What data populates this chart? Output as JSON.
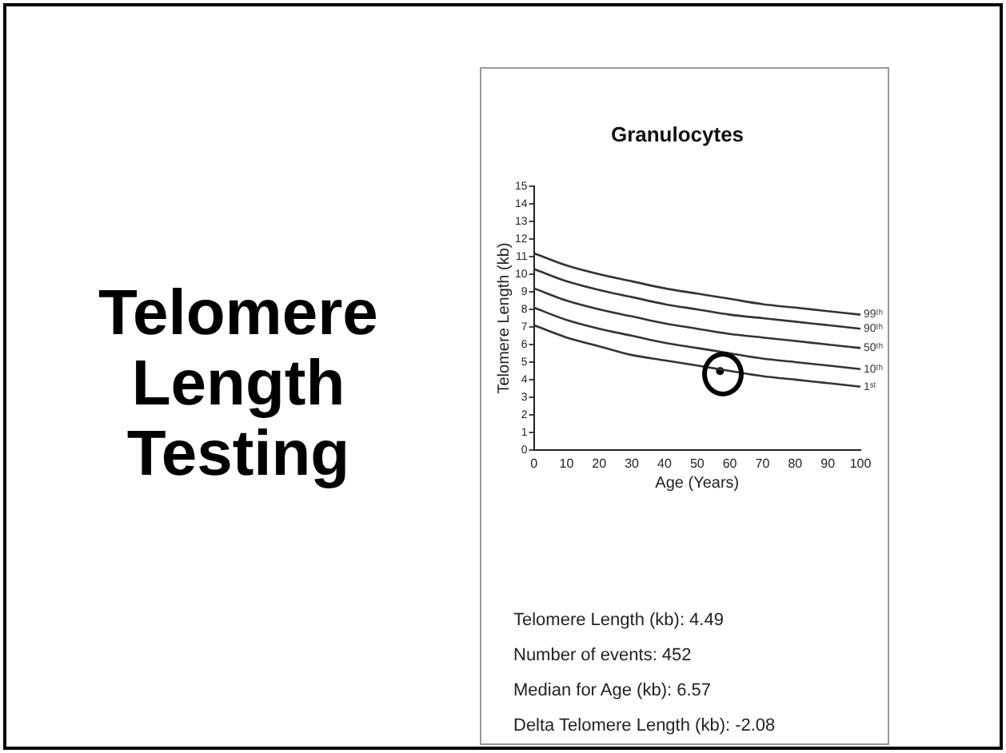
{
  "chart_data": {
    "type": "line",
    "title": "Granulocytes",
    "xlabel": "Age (Years)",
    "ylabel": "Telomere Length (kb)",
    "x": [
      0,
      10,
      20,
      30,
      40,
      50,
      60,
      70,
      80,
      90,
      100
    ],
    "xlim": [
      0,
      100
    ],
    "xticks": [
      0,
      10,
      20,
      30,
      40,
      50,
      60,
      70,
      80,
      90,
      100
    ],
    "ylim": [
      0,
      15
    ],
    "yticks": [
      0,
      1,
      2,
      3,
      4,
      5,
      6,
      7,
      8,
      9,
      10,
      11,
      12,
      13,
      14,
      15
    ],
    "grid": false,
    "legend": false,
    "line_style": "solid",
    "series": [
      {
        "name": "99ᵗʰ",
        "color": "#333333",
        "values": [
          11.2,
          10.5,
          10.0,
          9.6,
          9.2,
          8.9,
          8.6,
          8.3,
          8.1,
          7.9,
          7.7
        ]
      },
      {
        "name": "90ᵗʰ",
        "color": "#333333",
        "values": [
          10.3,
          9.6,
          9.1,
          8.7,
          8.3,
          8.0,
          7.7,
          7.5,
          7.3,
          7.1,
          6.9
        ]
      },
      {
        "name": "50ᵗʰ",
        "color": "#333333",
        "values": [
          9.2,
          8.5,
          8.0,
          7.6,
          7.2,
          6.9,
          6.6,
          6.4,
          6.2,
          6.0,
          5.8
        ]
      },
      {
        "name": "10ᵗʰ",
        "color": "#333333",
        "values": [
          8.1,
          7.4,
          6.9,
          6.5,
          6.1,
          5.8,
          5.5,
          5.2,
          5.0,
          4.8,
          4.6
        ]
      },
      {
        "name": "1ˢᵗ",
        "color": "#333333",
        "values": [
          7.1,
          6.4,
          5.9,
          5.4,
          5.1,
          4.8,
          4.5,
          4.2,
          4.0,
          3.8,
          3.6
        ]
      },
      {
        "type": "scatter",
        "marker": "circle",
        "color": "#000000",
        "x": [
          57
        ],
        "values": [
          4.49
        ]
      }
    ],
    "annotations": [
      "Telomere Length Testing",
      "Telomere Length (kb): 4.49",
      "Number of events: 452",
      "Median for Age (kb): 6.57",
      "Delta Telomere Length (kb): -2.08"
    ]
  }
}
